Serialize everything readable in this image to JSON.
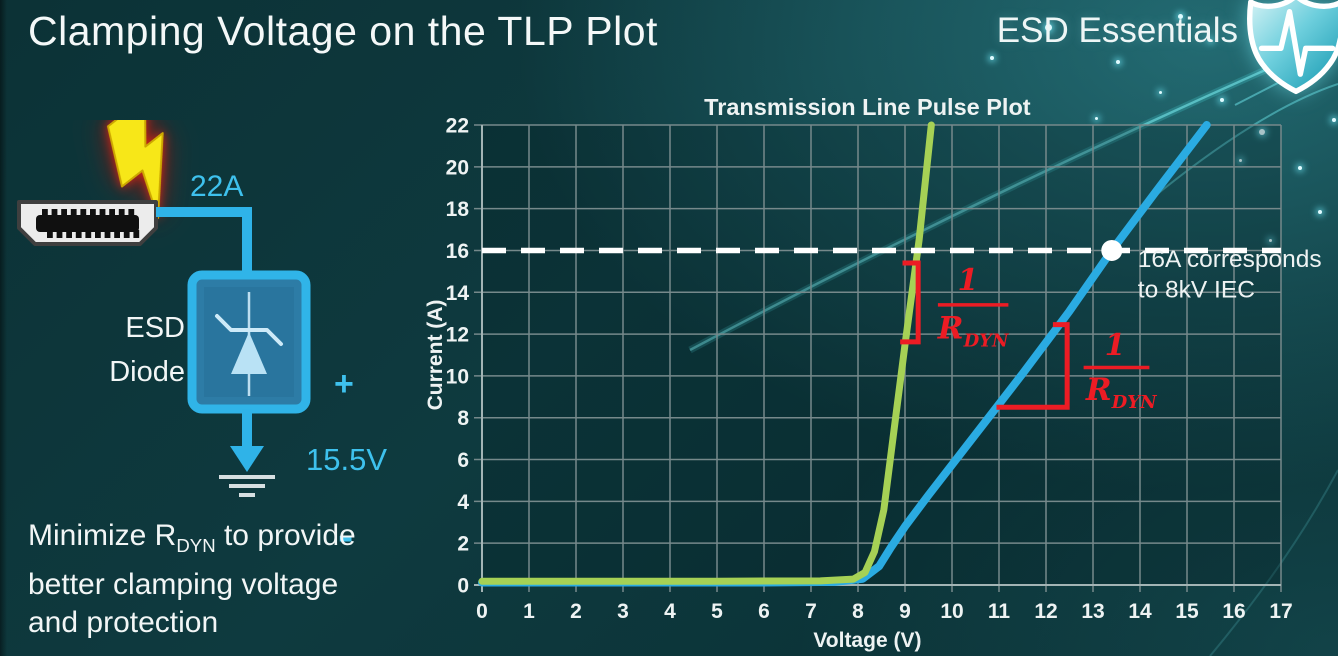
{
  "header": {
    "title": "Clamping Voltage on the TLP Plot",
    "brand": "ESD Essentials"
  },
  "diagram": {
    "surge_label": "22A",
    "device_line1": "ESD",
    "device_line2": "Diode",
    "plus": "+",
    "voltage_label": "15.5V",
    "minus": "-",
    "accent_color": "#2fb3e8"
  },
  "footer": {
    "line1_pre": "Minimize R",
    "line1_sub": "DYN",
    "line1_post": " to provide",
    "line2": "better clamping voltage",
    "line3": "and protection"
  },
  "chart_data": {
    "type": "line",
    "title": "Transmission Line Pulse Plot",
    "xlabel": "Voltage (V)",
    "ylabel": "Current (A)",
    "xlim": [
      0,
      17
    ],
    "ylim": [
      0,
      22
    ],
    "xtick_step": 1,
    "ytick_step": 2,
    "grid": true,
    "grid_color": "#76898b",
    "series": [
      {
        "name": "blue_curve",
        "color": "#2aabe2",
        "width": 8,
        "points": [
          [
            0,
            0.12
          ],
          [
            6,
            0.12
          ],
          [
            7.5,
            0.15
          ],
          [
            8.1,
            0.3
          ],
          [
            8.45,
            0.9
          ],
          [
            8.7,
            1.8
          ],
          [
            9.0,
            2.8
          ],
          [
            9.5,
            4.3
          ],
          [
            10.5,
            7.2
          ],
          [
            11.5,
            10.1
          ],
          [
            12.5,
            13.1
          ],
          [
            13.4,
            16
          ],
          [
            14.4,
            19
          ],
          [
            15.42,
            22
          ]
        ]
      },
      {
        "name": "green_curve",
        "color": "#a6d155",
        "width": 7,
        "points": [
          [
            0,
            0.18
          ],
          [
            5,
            0.18
          ],
          [
            7.2,
            0.2
          ],
          [
            7.9,
            0.28
          ],
          [
            8.15,
            0.6
          ],
          [
            8.35,
            1.6
          ],
          [
            8.55,
            3.6
          ],
          [
            8.8,
            8
          ],
          [
            9.0,
            11.5
          ],
          [
            9.3,
            16.5
          ],
          [
            9.56,
            22
          ]
        ]
      }
    ],
    "reference_line": {
      "y": 16,
      "color": "#ffffff",
      "style": "dashed"
    },
    "marker": {
      "x": 13.4,
      "y": 16,
      "color": "#ffffff",
      "label_line1": "16A corresponds",
      "label_line2": "to 8kV IEC"
    },
    "annotations": [
      {
        "name": "rdyn-green",
        "color": "#ec1c24",
        "bracket": [
          [
            9.0,
            15.4
          ],
          [
            9.28,
            15.4
          ],
          [
            9.28,
            11.63
          ],
          [
            8.95,
            11.63
          ]
        ],
        "fraction": {
          "numerator": "1",
          "den_main": "R",
          "den_sub": "DYN",
          "num_at": [
            10.34,
            14.1
          ],
          "bar": [
            9.7,
            11.2,
            13.4
          ],
          "den_at": [
            10.45,
            11.8
          ]
        }
      },
      {
        "name": "rdyn-blue",
        "color": "#ec1c24",
        "bracket": [
          [
            12.2,
            12.45
          ],
          [
            12.45,
            12.45
          ],
          [
            12.45,
            8.5
          ],
          [
            11.0,
            8.5
          ]
        ],
        "fraction": {
          "numerator": "1",
          "den_main": "R",
          "den_sub": "DYN",
          "num_at": [
            13.47,
            11.0
          ],
          "bar": [
            12.8,
            14.2,
            10.4
          ],
          "den_at": [
            13.6,
            8.85
          ]
        }
      }
    ]
  }
}
